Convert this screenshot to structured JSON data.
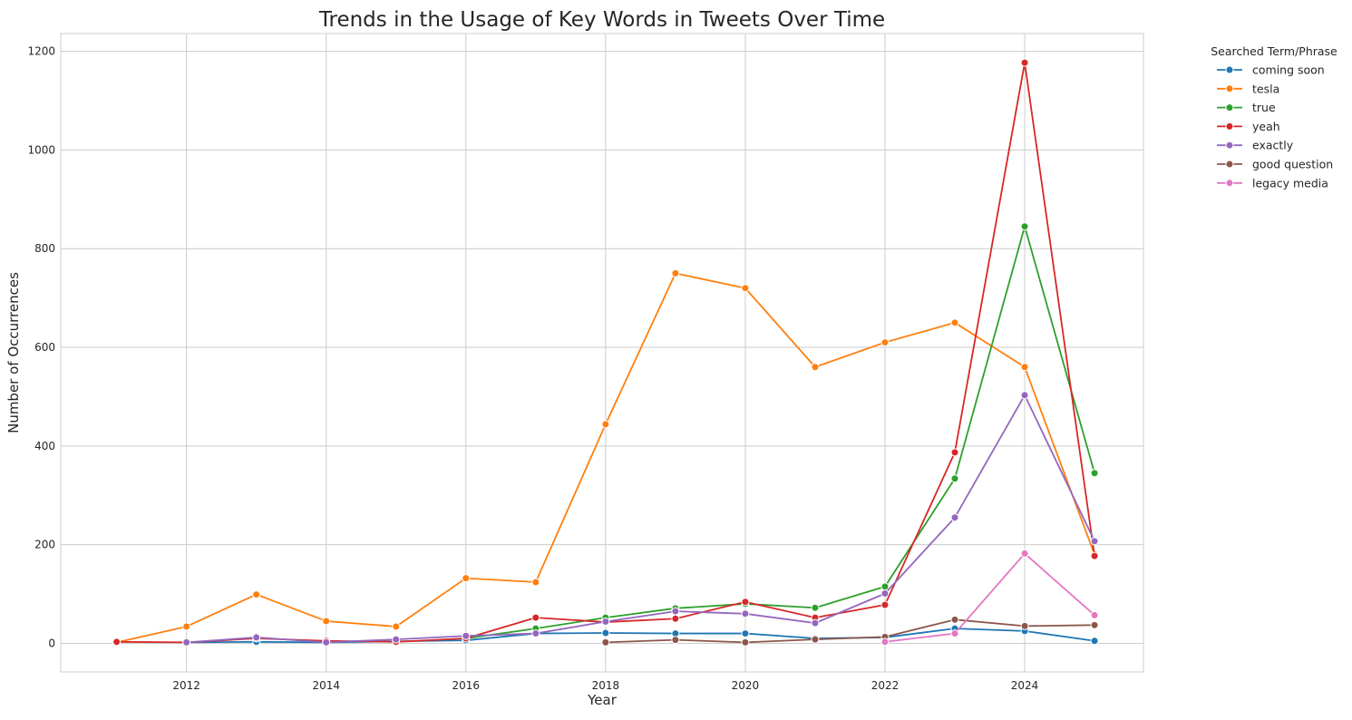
{
  "chart_data": {
    "type": "line",
    "title": "Trends in the Usage of Key Words in Tweets Over Time",
    "xlabel": "Year",
    "ylabel": "Number of Occurrences",
    "xlim": [
      2010.2,
      2025.7
    ],
    "ylim": [
      -58,
      1236
    ],
    "x_ticks": [
      2012,
      2014,
      2016,
      2018,
      2020,
      2022,
      2024
    ],
    "y_ticks": [
      0,
      200,
      400,
      600,
      800,
      1000,
      1200
    ],
    "grid": true,
    "legend": {
      "title": "Searched Term/Phrase",
      "placement": "outside-top-right"
    },
    "series": [
      {
        "name": "coming soon",
        "color": "#1f77b4",
        "points": [
          [
            2012,
            2
          ],
          [
            2013,
            3
          ],
          [
            2014,
            2
          ],
          [
            2015,
            4
          ],
          [
            2016,
            6
          ],
          [
            2017,
            20
          ],
          [
            2018,
            21
          ],
          [
            2019,
            20
          ],
          [
            2020,
            20
          ],
          [
            2021,
            10
          ],
          [
            2022,
            12
          ],
          [
            2023,
            30
          ],
          [
            2024,
            25
          ],
          [
            2025,
            5
          ]
        ]
      },
      {
        "name": "tesla",
        "color": "#ff7f0e",
        "points": [
          [
            2011,
            2
          ],
          [
            2012,
            34
          ],
          [
            2013,
            99
          ],
          [
            2014,
            45
          ],
          [
            2015,
            34
          ],
          [
            2016,
            132
          ],
          [
            2017,
            124
          ],
          [
            2018,
            444
          ],
          [
            2019,
            750
          ],
          [
            2020,
            720
          ],
          [
            2021,
            560
          ],
          [
            2022,
            610
          ],
          [
            2023,
            650
          ],
          [
            2024,
            560
          ],
          [
            2025,
            180
          ]
        ]
      },
      {
        "name": "true",
        "color": "#2ca02c",
        "points": [
          [
            2016,
            10
          ],
          [
            2017,
            30
          ],
          [
            2018,
            52
          ],
          [
            2019,
            71
          ],
          [
            2020,
            80
          ],
          [
            2021,
            72
          ],
          [
            2022,
            115
          ],
          [
            2023,
            334
          ],
          [
            2024,
            845
          ],
          [
            2025,
            345
          ]
        ]
      },
      {
        "name": "yeah",
        "color": "#d62728",
        "points": [
          [
            2011,
            3
          ],
          [
            2012,
            2
          ],
          [
            2013,
            10
          ],
          [
            2014,
            5
          ],
          [
            2015,
            3
          ],
          [
            2016,
            10
          ],
          [
            2017,
            52
          ],
          [
            2018,
            43
          ],
          [
            2019,
            50
          ],
          [
            2020,
            84
          ],
          [
            2021,
            52
          ],
          [
            2022,
            78
          ],
          [
            2023,
            387
          ],
          [
            2024,
            1177
          ],
          [
            2025,
            177
          ]
        ]
      },
      {
        "name": "exactly",
        "color": "#9467bd",
        "points": [
          [
            2012,
            2
          ],
          [
            2013,
            12
          ],
          [
            2014,
            2
          ],
          [
            2015,
            8
          ],
          [
            2016,
            15
          ],
          [
            2017,
            20
          ],
          [
            2018,
            44
          ],
          [
            2019,
            65
          ],
          [
            2020,
            60
          ],
          [
            2021,
            41
          ],
          [
            2022,
            101
          ],
          [
            2023,
            255
          ],
          [
            2024,
            503
          ],
          [
            2025,
            207
          ]
        ]
      },
      {
        "name": "good question",
        "color": "#8c564b",
        "points": [
          [
            2018,
            2
          ],
          [
            2019,
            7
          ],
          [
            2020,
            2
          ],
          [
            2021,
            8
          ],
          [
            2022,
            13
          ],
          [
            2023,
            48
          ],
          [
            2024,
            35
          ],
          [
            2025,
            37
          ]
        ]
      },
      {
        "name": "legacy media",
        "color": "#e377c2",
        "points": [
          [
            2022,
            3
          ],
          [
            2023,
            20
          ],
          [
            2024,
            182
          ],
          [
            2025,
            57
          ]
        ]
      }
    ]
  }
}
